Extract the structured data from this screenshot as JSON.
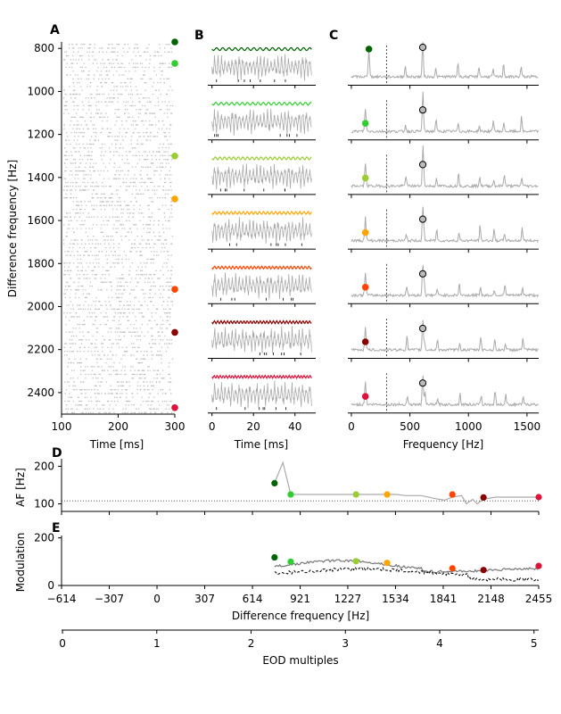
{
  "panels": {
    "a": "A",
    "b": "B",
    "c": "C",
    "d": "D",
    "e": "E"
  },
  "labels": {
    "raster_x": "Time [ms]",
    "raster_y": "Difference frequency [Hz]",
    "trace_x": "Time [ms]",
    "spectrum_x": "Frequency [Hz]",
    "af_y": "AF [Hz]",
    "mod_y": "Modulation",
    "mod_x": "Difference frequency [Hz]",
    "eod_x": "EOD multiples"
  },
  "colors": {
    "series": [
      "#006400",
      "#32cd32",
      "#9acd32",
      "#ffa500",
      "#ff4500",
      "#8b0000",
      "#dc143c"
    ],
    "grey": "#aaaaaa",
    "raster": "#bbbbbb"
  },
  "chart_data": [
    {
      "id": "A",
      "type": "scatter",
      "description_type": "raster",
      "xlim": [
        100,
        300
      ],
      "ylim": [
        2500,
        770
      ],
      "xticks": [
        "100",
        "200",
        "300"
      ],
      "yticks": [
        "800",
        "1000",
        "1200",
        "1400",
        "1600",
        "1800",
        "2000",
        "2200",
        "2400"
      ],
      "markers_y": [
        770,
        870,
        1300,
        1500,
        1920,
        2120,
        2470
      ]
    },
    {
      "id": "B",
      "type": "line",
      "xlim": [
        -2,
        50
      ],
      "xticks": [
        "0",
        "20",
        "40"
      ],
      "traces": 7
    },
    {
      "id": "C",
      "type": "line",
      "xlim": [
        -30,
        1600
      ],
      "xticks": [
        "0",
        "500",
        "1000",
        "1500"
      ],
      "cutoff_x": 300,
      "peak_filled_x": [
        150,
        120,
        120,
        120,
        120,
        120,
        120
      ],
      "peak_open_x": 610
    },
    {
      "id": "D",
      "type": "line",
      "xlim": [
        -614,
        2455
      ],
      "yticks": [
        "100",
        "200"
      ],
      "ylim": [
        80,
        220
      ],
      "baseline": 108,
      "af_line": [
        [
          750,
          150
        ],
        [
          810,
          210
        ],
        [
          860,
          125
        ],
        [
          1430,
          125
        ],
        [
          1540,
          125
        ],
        [
          1600,
          122
        ],
        [
          1700,
          122
        ],
        [
          1790,
          114
        ],
        [
          1850,
          110
        ],
        [
          1900,
          118
        ],
        [
          1960,
          122
        ],
        [
          1990,
          100
        ],
        [
          2030,
          112
        ],
        [
          2060,
          100
        ],
        [
          2100,
          113
        ],
        [
          2180,
          118
        ],
        [
          2455,
          118
        ]
      ],
      "points": [
        [
          756,
          155
        ],
        [
          860,
          125
        ],
        [
          1280,
          125
        ],
        [
          1480,
          125
        ],
        [
          1900,
          125
        ],
        [
          2100,
          117
        ],
        [
          2455,
          118
        ]
      ]
    },
    {
      "id": "E",
      "type": "line",
      "xlim": [
        -614,
        2455
      ],
      "xticks": [
        "−614",
        "−307",
        "0",
        "307",
        "614",
        "921",
        "1227",
        "1534",
        "1841",
        "2148",
        "2455"
      ],
      "yticks": [
        "0",
        "200"
      ],
      "ylim": [
        0,
        210
      ],
      "points": [
        [
          756,
          118
        ],
        [
          860,
          100
        ],
        [
          1280,
          102
        ],
        [
          1480,
          95
        ],
        [
          1900,
          72
        ],
        [
          2100,
          65
        ],
        [
          2455,
          82
        ]
      ]
    },
    {
      "id": "EOD",
      "type": "line",
      "xlim": [
        -0.01,
        5.05
      ],
      "xticks": [
        "0",
        "1",
        "2",
        "3",
        "4",
        "5"
      ]
    }
  ]
}
